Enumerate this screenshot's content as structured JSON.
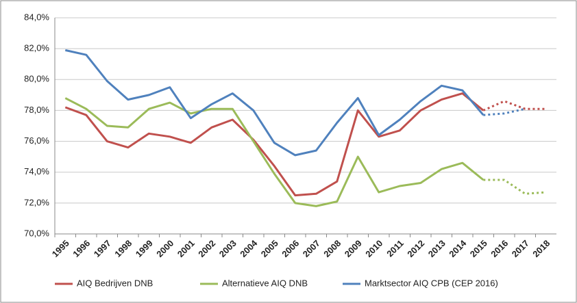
{
  "chart_data": {
    "type": "line",
    "categories": [
      "1995",
      "1996",
      "1997",
      "1998",
      "1999",
      "2000",
      "2001",
      "2002",
      "2003",
      "2004",
      "2005",
      "2006",
      "2007",
      "2008",
      "2009",
      "2010",
      "2011",
      "2012",
      "2013",
      "2014",
      "2015",
      "2016",
      "2017",
      "2018"
    ],
    "series": [
      {
        "name": "AIQ Bedrijven DNB",
        "color": "#c0504d",
        "dashed_from": "2015",
        "values": [
          78.2,
          77.7,
          76.0,
          75.6,
          76.5,
          76.3,
          75.9,
          76.9,
          77.4,
          76.1,
          74.4,
          72.5,
          72.6,
          73.4,
          78.0,
          76.3,
          76.7,
          78.0,
          78.7,
          79.1,
          78.0,
          78.6,
          78.1,
          78.1
        ]
      },
      {
        "name": "Alternatieve AIQ DNB",
        "color": "#9bbb59",
        "dashed_from": "2015",
        "values": [
          78.8,
          78.1,
          77.0,
          76.9,
          78.1,
          78.5,
          77.8,
          78.1,
          78.1,
          76.0,
          73.9,
          72.0,
          71.8,
          72.1,
          75.0,
          72.7,
          73.1,
          73.3,
          74.2,
          74.6,
          73.5,
          73.5,
          72.6,
          72.7
        ]
      },
      {
        "name": "Marktsector AIQ CPB (CEP 2016)",
        "color": "#4f81bd",
        "dashed_from": "2015",
        "values": [
          81.9,
          81.6,
          79.9,
          78.7,
          79.0,
          79.5,
          77.5,
          78.4,
          79.1,
          78.0,
          75.9,
          75.1,
          75.4,
          77.2,
          78.8,
          76.4,
          77.4,
          78.6,
          79.6,
          79.3,
          77.7,
          77.8,
          78.1,
          null
        ]
      }
    ],
    "ylim": [
      70,
      84
    ],
    "yticks": [
      {
        "value": 70,
        "label": "70,0%"
      },
      {
        "value": 72,
        "label": "72,0%"
      },
      {
        "value": 74,
        "label": "74,0%"
      },
      {
        "value": 76,
        "label": "76,0%"
      },
      {
        "value": 78,
        "label": "78,0%"
      },
      {
        "value": 80,
        "label": "80,0%"
      },
      {
        "value": 82,
        "label": "82,0%"
      },
      {
        "value": 84,
        "label": "84,0%"
      }
    ],
    "grid": true,
    "legend": "bottom"
  }
}
